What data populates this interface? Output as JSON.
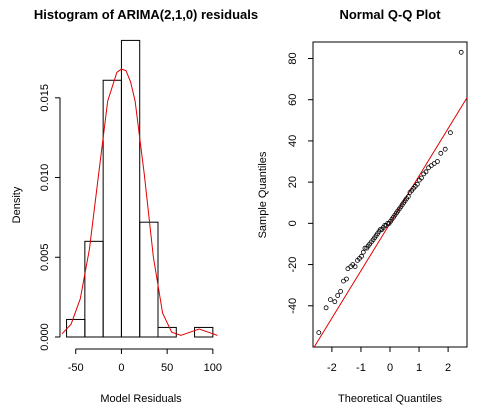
{
  "chart_data": [
    {
      "type": "bar",
      "title": "Histogram of ARIMA(2,1,0)   residuals",
      "xlabel": "Model Residuals",
      "ylabel": "Density",
      "xlim": [
        -65,
        110
      ],
      "ylim": [
        0,
        0.0185
      ],
      "xticks": [
        -50,
        0,
        50,
        100
      ],
      "xtick_labels": [
        "-50",
        "0",
        "50",
        "100"
      ],
      "yticks": [
        0,
        0.005,
        0.01,
        0.015
      ],
      "ytick_labels": [
        "0.000",
        "0.005",
        "0.010",
        "0.015"
      ],
      "bins": [
        {
          "x0": -60,
          "x1": -40,
          "density": 0.0011
        },
        {
          "x0": -40,
          "x1": -20,
          "density": 0.006
        },
        {
          "x0": -20,
          "x1": 0,
          "density": 0.0161
        },
        {
          "x0": 0,
          "x1": 20,
          "density": 0.0186
        },
        {
          "x0": 20,
          "x1": 40,
          "density": 0.0072
        },
        {
          "x0": 40,
          "x1": 60,
          "density": 0.0006
        },
        {
          "x0": 60,
          "x1": 80,
          "density": 0.0
        },
        {
          "x0": 80,
          "x1": 100,
          "density": 0.0006
        }
      ],
      "density_curve": {
        "color": "#e00000",
        "x": [
          -65,
          -55,
          -45,
          -35,
          -25,
          -15,
          -5,
          0,
          5,
          10,
          15,
          25,
          35,
          45,
          55,
          65,
          75,
          85,
          95,
          105
        ],
        "y": [
          0.0002,
          0.0008,
          0.0024,
          0.0055,
          0.0102,
          0.0148,
          0.0166,
          0.0168,
          0.0167,
          0.016,
          0.0148,
          0.0102,
          0.005,
          0.0015,
          0.0003,
          0.0001,
          0.0003,
          0.0005,
          0.0003,
          0.0001
        ]
      },
      "grid": false,
      "legend": "none"
    },
    {
      "type": "scatter",
      "title": "Normal Q-Q Plot",
      "xlabel": "Theoretical Quantiles",
      "ylabel": "Sample Quantiles",
      "xlim": [
        -2.65,
        2.65
      ],
      "ylim": [
        -60,
        88
      ],
      "xticks": [
        -2,
        -1,
        0,
        1,
        2
      ],
      "xtick_labels": [
        "-2",
        "-1",
        "0",
        "1",
        "2"
      ],
      "yticks": [
        -40,
        -20,
        0,
        20,
        40,
        60,
        80
      ],
      "ytick_labels": [
        "-40",
        "-20",
        "0",
        "20",
        "40",
        "60",
        "80"
      ],
      "points": [
        [
          -2.45,
          -53
        ],
        [
          -2.2,
          -41
        ],
        [
          -2.05,
          -37
        ],
        [
          -1.9,
          -38
        ],
        [
          -1.8,
          -35
        ],
        [
          -1.7,
          -33
        ],
        [
          -1.6,
          -28
        ],
        [
          -1.5,
          -27
        ],
        [
          -1.45,
          -22
        ],
        [
          -1.35,
          -21
        ],
        [
          -1.28,
          -20
        ],
        [
          -1.2,
          -21
        ],
        [
          -1.12,
          -18
        ],
        [
          -1.05,
          -17
        ],
        [
          -0.98,
          -16
        ],
        [
          -0.92,
          -14
        ],
        [
          -0.86,
          -12
        ],
        [
          -0.8,
          -12
        ],
        [
          -0.75,
          -11
        ],
        [
          -0.7,
          -10
        ],
        [
          -0.64,
          -9
        ],
        [
          -0.58,
          -8
        ],
        [
          -0.53,
          -7
        ],
        [
          -0.48,
          -6
        ],
        [
          -0.43,
          -5
        ],
        [
          -0.38,
          -4
        ],
        [
          -0.33,
          -3
        ],
        [
          -0.28,
          -3
        ],
        [
          -0.23,
          -2
        ],
        [
          -0.18,
          -1
        ],
        [
          -0.13,
          -1
        ],
        [
          -0.08,
          0
        ],
        [
          -0.03,
          0
        ],
        [
          0.02,
          1
        ],
        [
          0.07,
          2
        ],
        [
          0.12,
          3
        ],
        [
          0.17,
          4
        ],
        [
          0.22,
          5
        ],
        [
          0.27,
          6
        ],
        [
          0.32,
          7
        ],
        [
          0.37,
          8
        ],
        [
          0.42,
          9
        ],
        [
          0.47,
          10
        ],
        [
          0.52,
          11
        ],
        [
          0.57,
          12
        ],
        [
          0.63,
          13
        ],
        [
          0.69,
          15
        ],
        [
          0.75,
          16
        ],
        [
          0.81,
          17
        ],
        [
          0.87,
          18
        ],
        [
          0.94,
          19
        ],
        [
          1.01,
          21
        ],
        [
          1.08,
          22
        ],
        [
          1.16,
          24
        ],
        [
          1.24,
          25
        ],
        [
          1.33,
          27
        ],
        [
          1.42,
          28
        ],
        [
          1.52,
          29
        ],
        [
          1.63,
          30
        ],
        [
          1.75,
          34
        ],
        [
          1.9,
          36
        ],
        [
          2.08,
          44
        ],
        [
          2.45,
          83
        ]
      ],
      "reference_line": {
        "color": "#e00000",
        "intercept": 0,
        "slope": 23
      },
      "grid": false,
      "legend": "none"
    }
  ]
}
